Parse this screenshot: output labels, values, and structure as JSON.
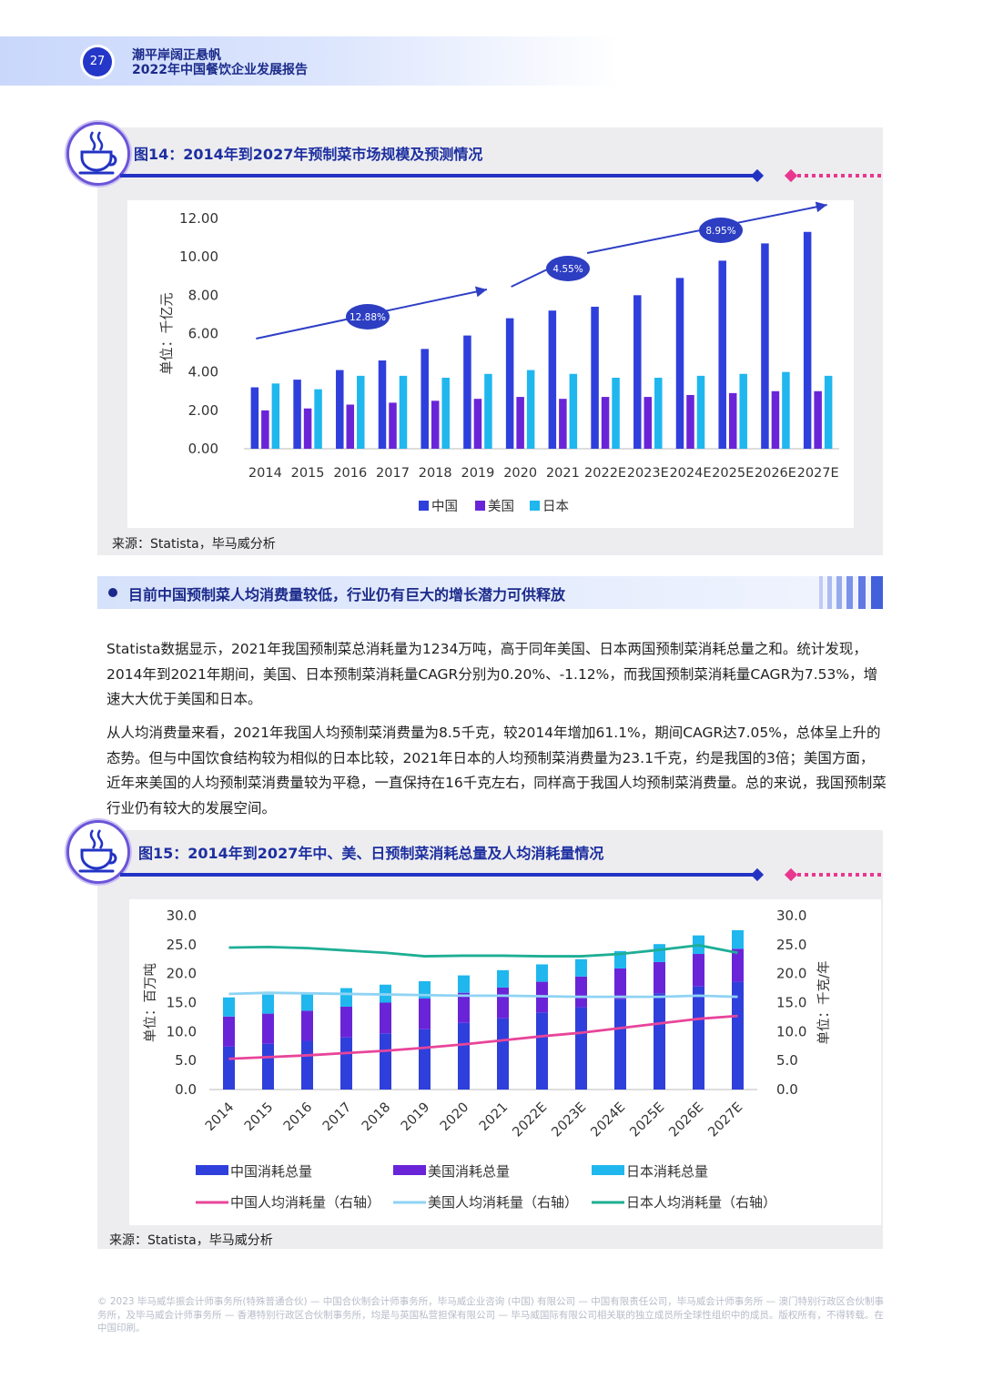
{
  "header": {
    "page_number": "27",
    "title_line1": "潮平岸阔正悬帆",
    "title_line2": "2022年中国餐饮企业发展报告"
  },
  "figure14": {
    "title": "图14：2014年到2027年预制菜市场规模及预测情况",
    "icon": "coffee-cup-icon",
    "source": "来源：Statista，毕马威分析"
  },
  "figure15": {
    "title": "图15：2014年到2027年中、美、日预制菜消耗总量及人均消耗量情况",
    "icon": "coffee-cup-icon",
    "source": "来源：Statista，毕马威分析"
  },
  "section": {
    "heading": "目前中国预制菜人均消费量较低，行业仍有巨大的增长潜力可供释放"
  },
  "paragraphs": [
    "Statista数据显示，2021年我国预制菜总消耗量为1234万吨，高于同年美国、日本两国预制菜消耗总量之和。统计发现，2014年到2021年期间，美国、日本预制菜消耗量CAGR分别为0.20%、-1.12%，而我国预制菜消耗量CAGR为7.53%，增速大大优于美国和日本。",
    "从人均消费量来看，2021年我国人均预制菜消费量为8.5千克，较2014年增加61.1%，期间CAGR达7.05%，总体呈上升的态势。但与中国饮食结构较为相似的日本比较，2021年日本的人均预制菜消费量为23.1千克，约是我国的3倍；美国方面，近年来美国的人均预制菜消费量较为平稳，一直保持在16千克左右，同样高于我国人均预制菜消费量。总的来说，我国预制菜行业仍有较大的发展空间。"
  ],
  "footer": {
    "text": "© 2023 毕马威华振会计师事务所(特殊普通合伙) — 中国合伙制会计师事务所，毕马威企业咨询 (中国) 有限公司 — 中国有限责任公司，毕马威会计师事务所 — 澳门特别行政区合伙制事务所，及毕马威会计师事务所 — 香港特别行政区合伙制事务所，均是与英国私营担保有限公司 — 毕马威国际有限公司相关联的独立成员所全球性组织中的成员。版权所有，不得转载。在中国印刷。"
  },
  "colors": {
    "china": "#2f3fdc",
    "usa": "#6a24d8",
    "japan": "#1fb7ee",
    "china_line": "#e8459a",
    "usa_line": "#8fd3f4",
    "japan_line": "#1eae95",
    "arrow": "#2e3fc6"
  },
  "chart_data": [
    {
      "id": "figure14",
      "type": "bar",
      "ylabel": "单位：千亿元",
      "ylim": [
        0,
        12
      ],
      "yticks": [
        "0.00",
        "2.00",
        "4.00",
        "6.00",
        "8.00",
        "10.00",
        "12.00"
      ],
      "categories": [
        "2014",
        "2015",
        "2016",
        "2017",
        "2018",
        "2019",
        "2020",
        "2021",
        "2022E",
        "2023E",
        "2024E",
        "2025E",
        "2026E",
        "2027E"
      ],
      "series": [
        {
          "name": "中国",
          "values": [
            3.2,
            3.6,
            4.1,
            4.6,
            5.2,
            5.9,
            6.8,
            7.2,
            7.4,
            8.0,
            8.9,
            9.8,
            10.7,
            11.3
          ]
        },
        {
          "name": "美国",
          "values": [
            2.0,
            2.1,
            2.3,
            2.4,
            2.5,
            2.6,
            2.7,
            2.6,
            2.7,
            2.7,
            2.8,
            2.9,
            3.0,
            3.0
          ]
        },
        {
          "name": "日本",
          "values": [
            3.4,
            3.1,
            3.8,
            3.8,
            3.7,
            3.9,
            4.1,
            3.9,
            3.7,
            3.7,
            3.8,
            3.9,
            4.0,
            3.8
          ]
        }
      ],
      "legend_position": "bottom",
      "annotations": [
        {
          "label": "12.88%",
          "from": "2014",
          "to": "2019"
        },
        {
          "label": "4.55%",
          "from": "2020",
          "to": "2021"
        },
        {
          "label": "8.95%",
          "from": "2022E",
          "to": "2027E"
        }
      ]
    },
    {
      "id": "figure15",
      "type": "bar",
      "stacked": true,
      "ylabel_left": "单位：百万吨",
      "ylabel_right": "单位：千克/年",
      "ylim": [
        0,
        30
      ],
      "yticks": [
        "0.0",
        "5.0",
        "10.0",
        "15.0",
        "20.0",
        "25.0",
        "30.0"
      ],
      "categories": [
        "2014",
        "2015",
        "2016",
        "2017",
        "2018",
        "2019",
        "2020",
        "2021",
        "2022E",
        "2023E",
        "2024E",
        "2025E",
        "2026E",
        "2027E"
      ],
      "series": [
        {
          "name": "中国消耗总量",
          "values": [
            7.4,
            7.9,
            8.4,
            9.0,
            9.7,
            10.4,
            11.5,
            12.3,
            13.3,
            14.2,
            15.6,
            16.6,
            17.8,
            18.6
          ]
        },
        {
          "name": "美国消耗总量",
          "values": [
            5.2,
            5.2,
            5.2,
            5.3,
            5.3,
            5.3,
            5.2,
            5.3,
            5.3,
            5.3,
            5.3,
            5.4,
            5.6,
            5.7
          ]
        },
        {
          "name": "日本消耗总量",
          "values": [
            3.3,
            3.3,
            3.2,
            3.2,
            3.1,
            3.0,
            3.0,
            3.0,
            3.0,
            3.0,
            3.0,
            3.1,
            3.2,
            3.2
          ]
        }
      ],
      "lines": [
        {
          "name": "中国人均消耗量（右轴）",
          "values": [
            5.3,
            5.6,
            5.9,
            6.3,
            6.7,
            7.2,
            7.8,
            8.5,
            9.2,
            9.8,
            10.6,
            11.4,
            12.2,
            12.7
          ]
        },
        {
          "name": "美国人均消耗量（右轴）",
          "values": [
            16.5,
            16.7,
            16.6,
            16.5,
            16.4,
            16.3,
            16.2,
            16.2,
            16.1,
            16.0,
            16.0,
            16.0,
            16.2,
            16.0
          ]
        },
        {
          "name": "日本人均消耗量（右轴）",
          "values": [
            24.5,
            24.6,
            24.4,
            24.0,
            23.6,
            23.0,
            23.1,
            23.1,
            23.0,
            23.0,
            23.4,
            24.1,
            24.9,
            23.6
          ]
        }
      ],
      "legend_position": "bottom"
    }
  ]
}
